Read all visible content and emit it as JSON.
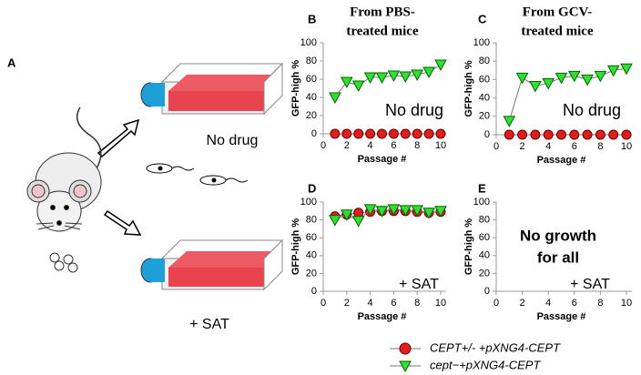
{
  "diagram": {
    "label": "A",
    "labels": [
      "No drug",
      "+ SAT"
    ]
  },
  "chart_data": [
    {
      "type": "line",
      "panel": "B",
      "title": [
        "From PBS-",
        "treated  mice"
      ],
      "x_label": "Passage #",
      "y_label": "GFP-high %",
      "xlim": [
        0,
        10
      ],
      "ylim": [
        0,
        100
      ],
      "xticks": [
        0,
        2,
        4,
        6,
        8,
        10
      ],
      "yticks": [
        0,
        20,
        40,
        60,
        80,
        100
      ],
      "annotations": [
        {
          "text": "No drug"
        }
      ],
      "series": [
        {
          "name": "CEPT+/- +pXNG4-CEPT",
          "color": "#e01e1e",
          "marker": "circle",
          "x": [
            1,
            2,
            3,
            4,
            5,
            6,
            7,
            8,
            9,
            10
          ],
          "values": [
            0,
            0,
            0,
            0,
            0,
            0,
            0,
            0,
            0,
            0
          ]
        },
        {
          "name": "cept−+pXNG4-CEPT",
          "color": "#33dd33",
          "marker": "triangle",
          "x": [
            1,
            2,
            3,
            4,
            5,
            6,
            7,
            8,
            9,
            10
          ],
          "values": [
            40,
            57,
            53,
            62,
            62,
            64,
            63,
            65,
            68,
            76
          ]
        }
      ]
    },
    {
      "type": "line",
      "panel": "C",
      "title": [
        "From GCV-",
        "treated  mice"
      ],
      "x_label": "Passage #",
      "y_label": "GFP-high %",
      "xlim": [
        0,
        10
      ],
      "ylim": [
        0,
        100
      ],
      "xticks": [
        0,
        2,
        4,
        6,
        8,
        10
      ],
      "yticks": [
        0,
        20,
        40,
        60,
        80,
        100
      ],
      "annotations": [
        {
          "text": "No drug"
        }
      ],
      "series": [
        {
          "name": "CEPT+/- +pXNG4-CEPT",
          "color": "#e01e1e",
          "marker": "circle",
          "x": [
            1,
            2,
            3,
            4,
            5,
            6,
            7,
            8,
            9,
            10
          ],
          "values": [
            0,
            0,
            0,
            0,
            0,
            0,
            0,
            0,
            0,
            0
          ]
        },
        {
          "name": "cept−+pXNG4-CEPT",
          "color": "#33dd33",
          "marker": "triangle",
          "x": [
            1,
            2,
            3,
            4,
            5,
            6,
            7,
            8,
            9,
            10
          ],
          "values": [
            15,
            62,
            53,
            56,
            62,
            64,
            60,
            64,
            70,
            72
          ]
        }
      ]
    },
    {
      "type": "line",
      "panel": "D",
      "x_label": "Passage #",
      "y_label": "GFP-high %",
      "xlim": [
        0,
        10
      ],
      "ylim": [
        0,
        100
      ],
      "xticks": [
        0,
        2,
        4,
        6,
        8,
        10
      ],
      "yticks": [
        0,
        20,
        40,
        60,
        80,
        100
      ],
      "annotations": [
        {
          "text": "+ SAT"
        }
      ],
      "series": [
        {
          "name": "CEPT+/- +pXNG4-CEPT",
          "color": "#e01e1e",
          "marker": "circle",
          "x": [
            1,
            2,
            3,
            4,
            5,
            6,
            7,
            8,
            9,
            10
          ],
          "values": [
            84,
            86,
            88,
            89,
            90,
            90,
            90,
            89,
            88,
            89
          ]
        },
        {
          "name": "cept−+pXNG4-CEPT",
          "color": "#33dd33",
          "marker": "triangle",
          "x": [
            1,
            2,
            3,
            4,
            5,
            6,
            7,
            8,
            9,
            10
          ],
          "values": [
            80,
            86,
            79,
            92,
            90,
            92,
            91,
            91,
            88,
            90
          ]
        }
      ]
    },
    {
      "type": "line",
      "panel": "E",
      "x_label": "Passage #",
      "y_label": "GFP-high %",
      "xlim": [
        0,
        10
      ],
      "ylim": [
        0,
        100
      ],
      "xticks": [
        0,
        2,
        4,
        6,
        8,
        10
      ],
      "yticks": [
        0,
        20,
        40,
        60,
        80,
        100
      ],
      "annotations": [
        {
          "text": "No growth",
          "color": "#e8001c"
        },
        {
          "text": "for all",
          "color": "#e8001c"
        },
        {
          "text": "+ SAT"
        }
      ],
      "series": []
    }
  ]
}
